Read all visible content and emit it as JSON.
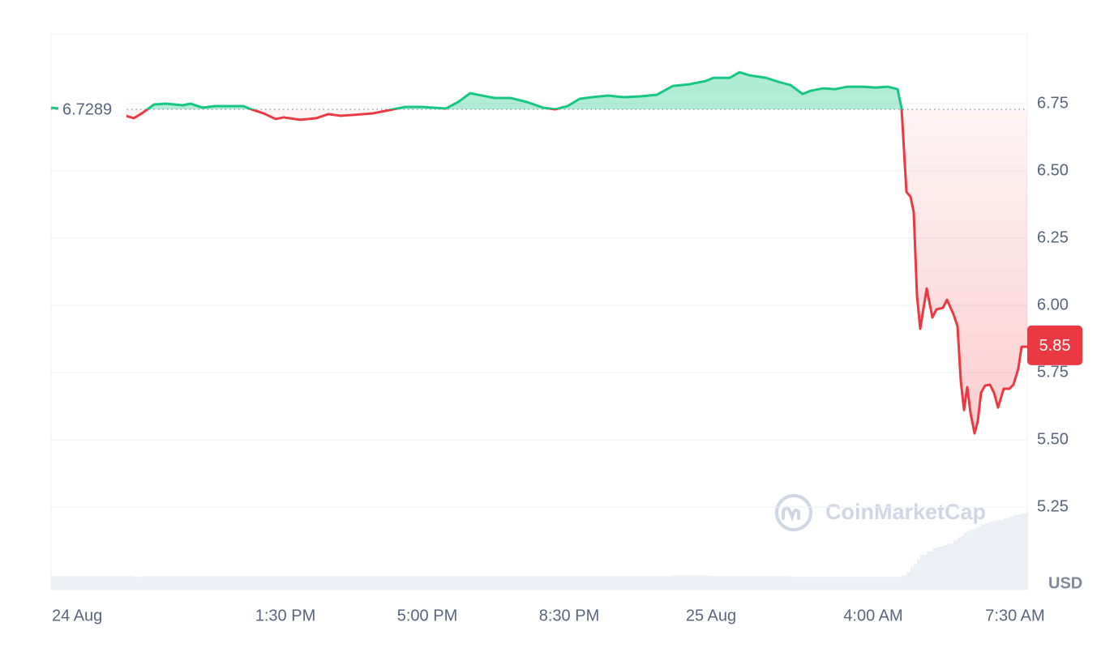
{
  "chart_data": {
    "type": "line",
    "x": [
      7.72,
      8.46,
      9.56,
      9.76,
      9.96,
      10.26,
      10.56,
      10.96,
      11.16,
      11.46,
      11.76,
      12.46,
      12.66,
      12.96,
      13.26,
      13.46,
      13.86,
      14.26,
      14.56,
      14.86,
      15.16,
      15.66,
      16.06,
      16.46,
      16.86,
      17.46,
      17.76,
      18.06,
      18.36,
      18.66,
      19.06,
      19.46,
      19.86,
      20.16,
      20.46,
      20.76,
      21.06,
      21.46,
      21.86,
      22.26,
      22.66,
      23.06,
      23.46,
      23.86,
      24.06,
      24.46,
      24.7,
      24.96,
      25.36,
      25.66,
      25.96,
      26.26,
      26.46,
      26.76,
      27.06,
      27.36,
      27.76,
      28.06,
      28.36,
      28.6,
      28.7,
      28.82,
      28.92,
      29.0,
      29.08,
      29.16,
      29.32,
      29.46,
      29.56,
      29.72,
      29.82,
      29.98,
      30.08,
      30.16,
      30.24,
      30.32,
      30.4,
      30.5,
      30.58,
      30.66,
      30.76,
      30.88,
      30.98,
      31.08,
      31.22,
      31.36,
      31.46,
      31.58,
      31.66,
      31.8
    ],
    "values": [
      6.735,
      6.723,
      6.705,
      6.696,
      6.714,
      6.747,
      6.75,
      6.744,
      6.75,
      6.735,
      6.741,
      6.741,
      6.729,
      6.714,
      6.693,
      6.699,
      6.69,
      6.696,
      6.711,
      6.705,
      6.708,
      6.714,
      6.726,
      6.738,
      6.738,
      6.732,
      6.756,
      6.789,
      6.78,
      6.771,
      6.771,
      6.756,
      6.735,
      6.729,
      6.741,
      6.768,
      6.774,
      6.78,
      6.774,
      6.777,
      6.783,
      6.816,
      6.822,
      6.834,
      6.846,
      6.846,
      6.867,
      6.855,
      6.846,
      6.831,
      6.819,
      6.786,
      6.798,
      6.807,
      6.804,
      6.813,
      6.813,
      6.81,
      6.813,
      6.804,
      6.732,
      6.422,
      6.404,
      6.346,
      6.036,
      5.913,
      6.063,
      5.955,
      5.985,
      5.991,
      6.021,
      5.967,
      5.922,
      5.72,
      5.611,
      5.696,
      5.6,
      5.524,
      5.569,
      5.675,
      5.702,
      5.705,
      5.675,
      5.62,
      5.69,
      5.69,
      5.705,
      5.765,
      5.846,
      5.846
    ],
    "volume": [
      17,
      17,
      17,
      16,
      17,
      17,
      17,
      17,
      17,
      17,
      17,
      17,
      17,
      17,
      17,
      17,
      17,
      17,
      17,
      17,
      17,
      17,
      17,
      17,
      17,
      17,
      17,
      17,
      17,
      17,
      17,
      17,
      17,
      17,
      17,
      17,
      17,
      17,
      17,
      17,
      17,
      18,
      18,
      17,
      17,
      17,
      17,
      17,
      17,
      17,
      16,
      16,
      16,
      16,
      16,
      16,
      16,
      16,
      16,
      16,
      18,
      22,
      28,
      32,
      38,
      44,
      48,
      52,
      54,
      56,
      58,
      62,
      66,
      68,
      72,
      74,
      76,
      78,
      80,
      82,
      84,
      86,
      87,
      88,
      90,
      92,
      94,
      95,
      96,
      98
    ],
    "reference": 6.7289,
    "current_price": 5.85,
    "currency": "USD",
    "watermark": "CoinMarketCap",
    "up_color": "#16c784",
    "down_color": "#ea3943",
    "xlim": [
      7.72,
      31.8
    ],
    "ylim": [
      4.943,
      7.009
    ],
    "xticks": [
      {
        "value": 7.72,
        "label": "24 Aug"
      },
      {
        "value": 13.5,
        "label": "1:30 PM"
      },
      {
        "value": 17,
        "label": "5:00 PM"
      },
      {
        "value": 20.5,
        "label": "8:30 PM"
      },
      {
        "value": 24,
        "label": "25 Aug"
      },
      {
        "value": 28,
        "label": "4:00 AM"
      },
      {
        "value": 31.5,
        "label": "7:30 AM"
      }
    ],
    "yticks": [
      5.25,
      {
        "value": 5.5,
        "label": "5.50"
      },
      5.75,
      {
        "value": 6,
        "label": "6.00"
      },
      6.25,
      {
        "value": 6.5,
        "label": "6.50"
      },
      6.75
    ],
    "grid": true
  }
}
